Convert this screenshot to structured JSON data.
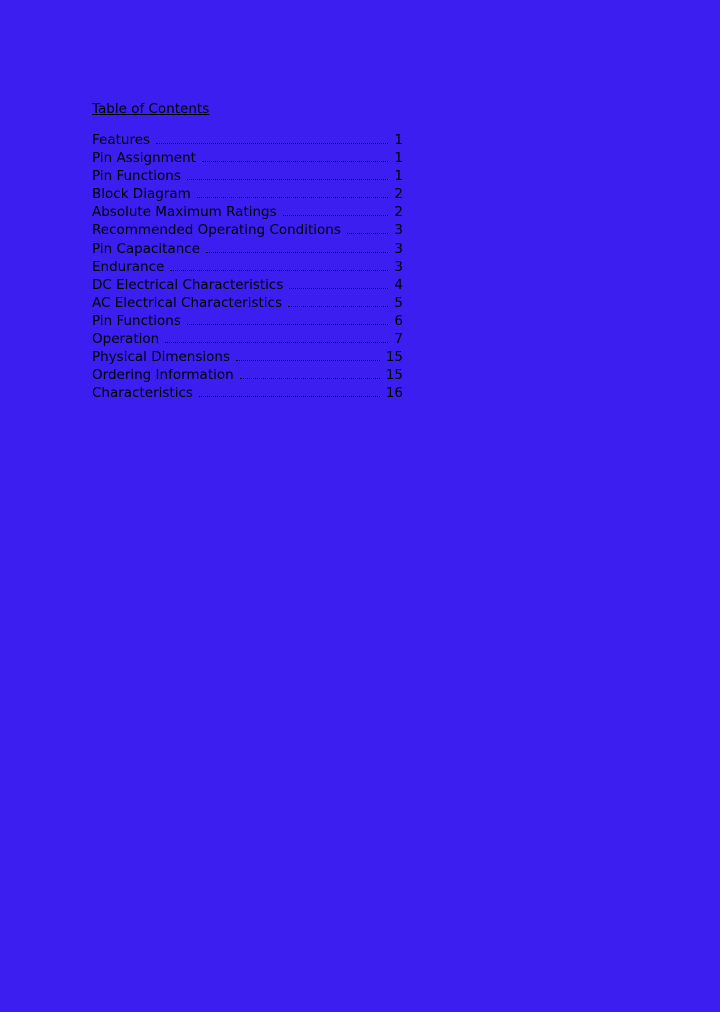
{
  "toc": {
    "title": "Table of Contents",
    "entries": [
      {
        "label": "Features",
        "page": "1"
      },
      {
        "label": "Pin Assignment",
        "page": "1"
      },
      {
        "label": "Pin Functions",
        "page": "1"
      },
      {
        "label": "Block Diagram",
        "page": "2"
      },
      {
        "label": "Absolute Maximum Ratings",
        "page": "2"
      },
      {
        "label": "Recommended Operating Conditions",
        "page": "3"
      },
      {
        "label": "Pin Capacitance",
        "page": "3"
      },
      {
        "label": "Endurance",
        "page": "3"
      },
      {
        "label": "DC Electrical Characteristics",
        "page": "4"
      },
      {
        "label": "AC Electrical Characteristics",
        "page": "5"
      },
      {
        "label": "Pin Functions",
        "page": "6"
      },
      {
        "label": "Operation",
        "page": "7"
      },
      {
        "label": "Physical Dimensions",
        "page": "15"
      },
      {
        "label": "Ordering Information",
        "page": "15"
      },
      {
        "label": "Characteristics",
        "page": "16"
      }
    ]
  },
  "colors": {
    "background": "#3d1ef0",
    "text": "#000000"
  }
}
